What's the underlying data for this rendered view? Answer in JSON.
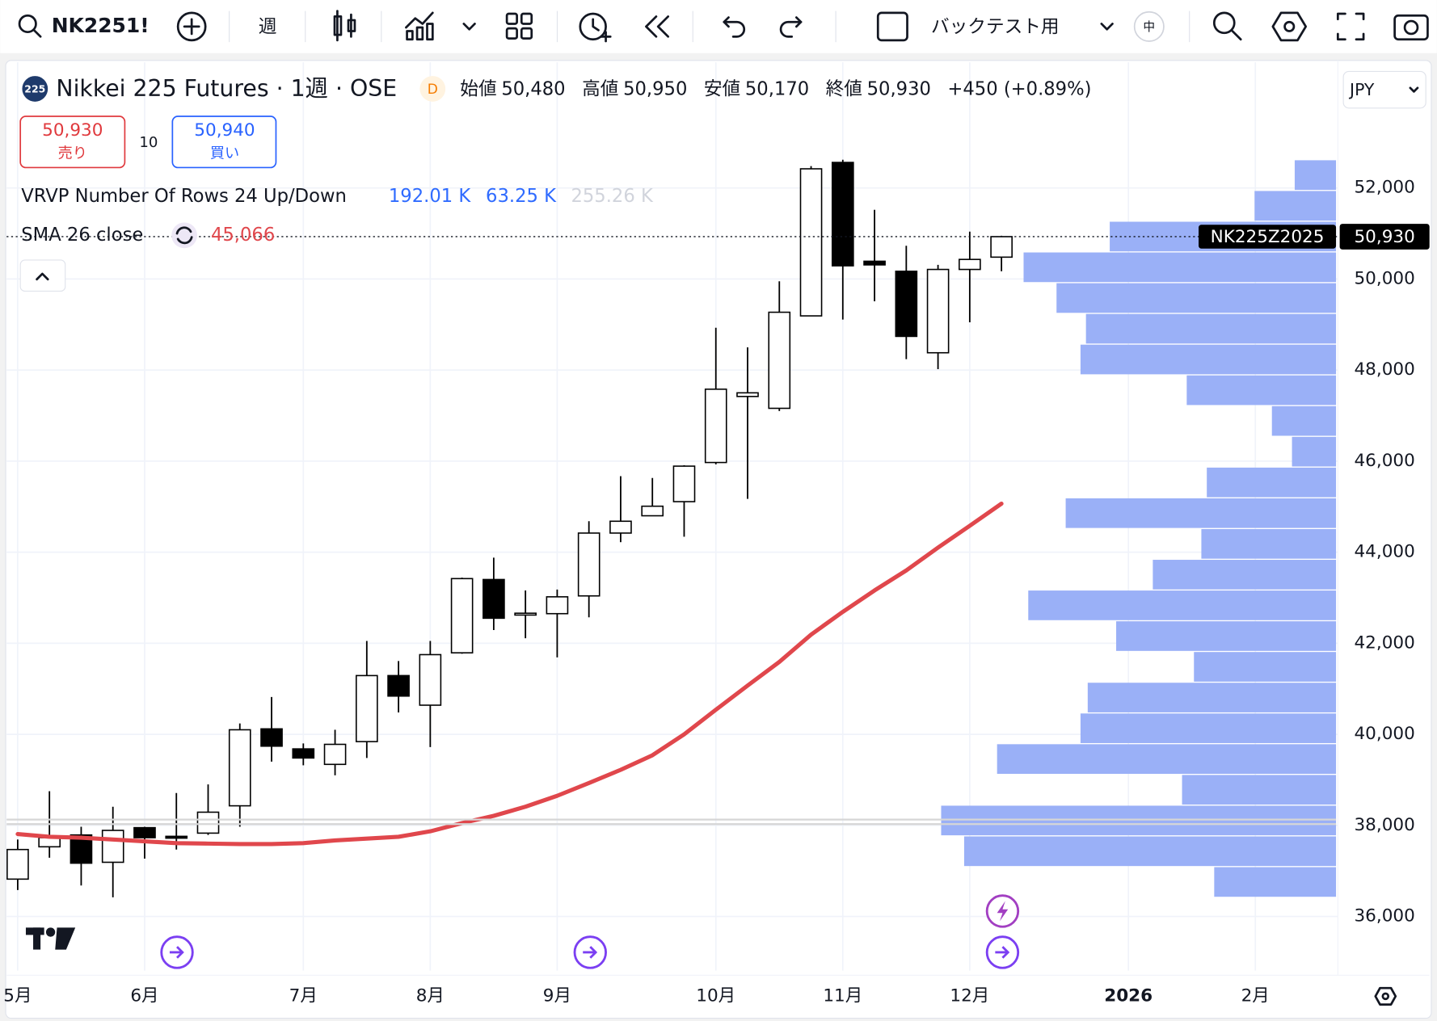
{
  "toolbar": {
    "symbol": "NK2251!",
    "interval": "週",
    "layout_name": "バックテスト用",
    "lang": "中"
  },
  "header": {
    "logo": "225",
    "title": "Nikkei 225 Futures · 1週 · OSE",
    "badge": "D",
    "open_label": "始値",
    "open": "50,480",
    "high_label": "高値",
    "high": "50,950",
    "low_label": "安値",
    "low": "50,170",
    "close_label": "終値",
    "close": "50,930",
    "change": "+450 (+0.89%)",
    "currency": "JPY"
  },
  "trade": {
    "sell_price": "50,930",
    "sell_label": "売り",
    "qty": "10",
    "buy_price": "50,940",
    "buy_label": "買い"
  },
  "indicators": {
    "vrvp_name": "VRVP Number Of Rows 24 Up/Down",
    "vrvp_up": "192.01 K",
    "vrvp_down": "63.25 K",
    "vrvp_total": "255.26 K",
    "sma_name": "SMA 26 close",
    "sma_value": "45,066"
  },
  "chart_data": {
    "type": "candlestick",
    "open": [
      36820,
      37530,
      37790,
      37190,
      37950,
      37760,
      37830,
      38430,
      40120,
      39680,
      39340,
      39840,
      41290,
      40640,
      41790,
      43400,
      42640,
      42650,
      43040,
      44420,
      44800,
      45110,
      45970,
      47420,
      47160,
      49190,
      52560,
      50390,
      50170,
      48380,
      50210,
      50480
    ],
    "high": [
      37690,
      38750,
      37970,
      38410,
      37970,
      38710,
      38900,
      40240,
      40820,
      39800,
      40100,
      42050,
      41610,
      42050,
      43440,
      43880,
      43160,
      43180,
      44680,
      45670,
      45630,
      45910,
      48930,
      48500,
      49950,
      52480,
      52620,
      51520,
      50730,
      50310,
      51040,
      50950
    ],
    "low": [
      36580,
      37290,
      36680,
      36420,
      37270,
      37470,
      37790,
      37970,
      39400,
      39320,
      39100,
      39480,
      40480,
      39720,
      41770,
      42290,
      42110,
      41690,
      42570,
      44220,
      44800,
      44340,
      45930,
      45170,
      47100,
      49190,
      49110,
      49510,
      48240,
      48020,
      49050,
      50170
    ],
    "close": [
      37470,
      37730,
      37170,
      37890,
      37730,
      37720,
      38290,
      40100,
      39740,
      39480,
      39780,
      41290,
      40840,
      41750,
      43420,
      42550,
      42660,
      43020,
      44420,
      44680,
      45010,
      45890,
      47580,
      47500,
      49270,
      52420,
      50290,
      50310,
      48740,
      50210,
      50430,
      50930
    ],
    "up_color": "#ffffff",
    "down_color": "#000000",
    "sma": {
      "name": "SMA 26 close",
      "color": "#e0474c",
      "values": [
        37810,
        37750,
        37730,
        37690,
        37650,
        37610,
        37600,
        37590,
        37590,
        37610,
        37670,
        37710,
        37750,
        37870,
        38050,
        38210,
        38410,
        38650,
        38930,
        39220,
        39540,
        40000,
        40540,
        41070,
        41590,
        42190,
        42690,
        43160,
        43600,
        44100,
        44580,
        45066
      ]
    },
    "volume_profile": {
      "color": "#9ab0f7",
      "values": [
        6.25,
        19.08,
        20.26,
        7.9,
        17.39,
        13.11,
        12.74,
        7.29,
        11.28,
        15.79,
        9.4,
        6.91,
        13.87,
        6.63,
        2.26,
        3.29,
        7.66,
        13.11,
        12.83,
        14.34,
        16.03,
        11.61,
        4.18,
        2.12
      ]
    },
    "last_price": 50930,
    "last_price_label": "50,930",
    "last_symbol": "NK225Z2025",
    "ylim": [
      34810,
      54760
    ],
    "yticks": [
      {
        "value": 36000,
        "label": "36,000"
      },
      {
        "value": 38000,
        "label": "38,000"
      },
      {
        "value": 40000,
        "label": "40,000"
      },
      {
        "value": 42000,
        "label": "42,000"
      },
      {
        "value": 44000,
        "label": "44,000"
      },
      {
        "value": 46000,
        "label": "46,000"
      },
      {
        "value": 48000,
        "label": "48,000"
      },
      {
        "value": 50000,
        "label": "50,000"
      },
      {
        "value": 52000,
        "label": "52,000"
      }
    ],
    "xlim": [
      -0.35,
      41.6
    ],
    "xticks": [
      {
        "value": 0,
        "label": "5月"
      },
      {
        "value": 4,
        "label": "6月"
      },
      {
        "value": 9,
        "label": "7月"
      },
      {
        "value": 13,
        "label": "8月"
      },
      {
        "value": 17,
        "label": "9月"
      },
      {
        "value": 22,
        "label": "10月"
      },
      {
        "value": 26,
        "label": "11月"
      },
      {
        "value": 30,
        "label": "12月"
      },
      {
        "value": 35,
        "label": "2026"
      },
      {
        "value": 39,
        "label": "2月"
      }
    ],
    "grid": true
  }
}
